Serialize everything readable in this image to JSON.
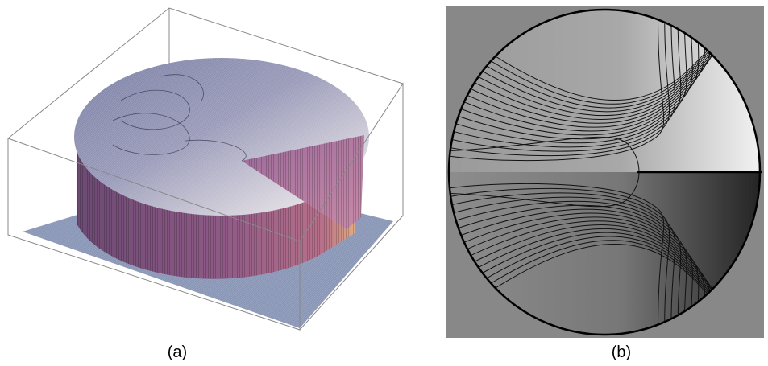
{
  "figure": {
    "panel_a": {
      "caption": "(a)"
    },
    "panel_b": {
      "caption": "(b)"
    }
  },
  "colors": {
    "surface_top": "#8f93b3",
    "surface_highlight": "#e8e4e8",
    "wall": "#8e5a86",
    "wall_highlight": "#f0c080",
    "floor": "#8b97b6",
    "contour_bg": "#888888",
    "contour_line": "#111111"
  }
}
